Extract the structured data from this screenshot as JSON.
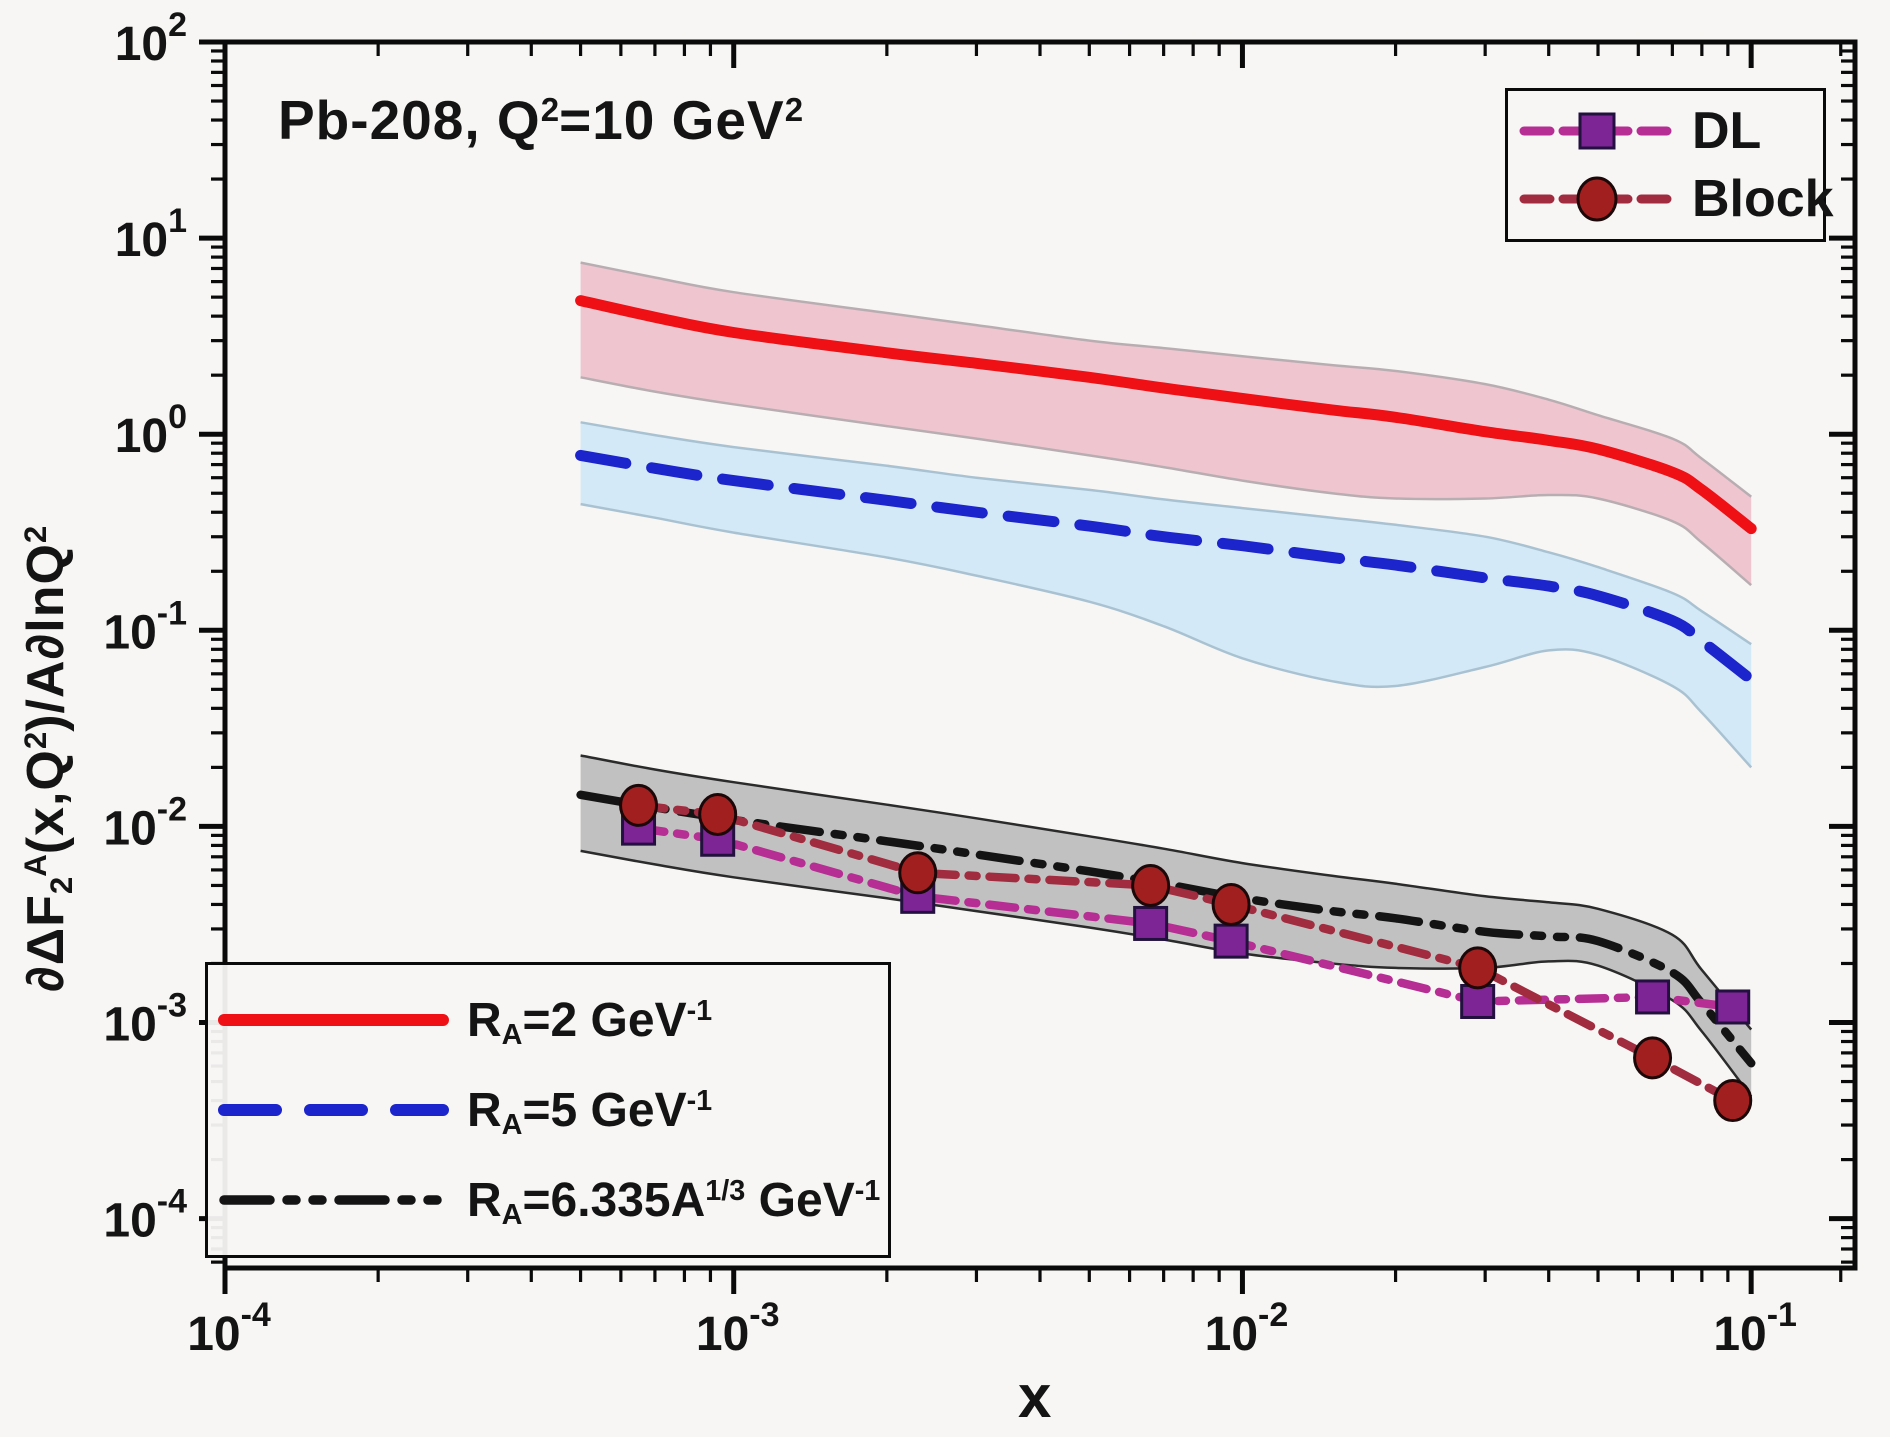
{
  "title_segments": [
    {
      "t": "Pb-208, Q"
    },
    {
      "t": "2",
      "style": "sup"
    },
    {
      "t": "=10 GeV"
    },
    {
      "t": "2",
      "style": "sup"
    }
  ],
  "axes": {
    "x": {
      "label": "x",
      "ticks": [
        {
          "base": "10",
          "exp": "-4"
        },
        {
          "base": "10",
          "exp": "-3"
        },
        {
          "base": "10",
          "exp": "-2"
        },
        {
          "base": "10",
          "exp": "-1"
        }
      ],
      "tick_exponents": [
        -4,
        -3,
        -2,
        -1
      ]
    },
    "y": {
      "label_segments": [
        {
          "t": "∂ΔF"
        },
        {
          "t": "2",
          "style": "sub"
        },
        {
          "t": "A",
          "style": "sup"
        },
        {
          "t": "(x,Q"
        },
        {
          "t": "2",
          "style": "sup"
        },
        {
          "t": ")/A∂lnQ"
        },
        {
          "t": "2",
          "style": "sup"
        }
      ],
      "ticks": [
        {
          "base": "10",
          "exp": "2"
        },
        {
          "base": "10",
          "exp": "1"
        },
        {
          "base": "10",
          "exp": "0"
        },
        {
          "base": "10",
          "exp": "-1"
        },
        {
          "base": "10",
          "exp": "-2"
        },
        {
          "base": "10",
          "exp": "-3"
        },
        {
          "base": "10",
          "exp": "-4"
        }
      ],
      "tick_exponents": [
        2,
        1,
        0,
        -1,
        -2,
        -3,
        -4
      ]
    }
  },
  "colors": {
    "frame": "#0a0a0a",
    "background": "#f7f6f4",
    "red_line": "#ee1015",
    "red_band": "#efc6d0",
    "red_band_edge": "#b8aeb2",
    "blue_line": "#1c24cc",
    "blue_band": "#d4e9f7",
    "blue_band_edge": "#a9c2d2",
    "black_line": "#141414",
    "gray_band": "#c2c1c1",
    "gray_band_edge": "#2b2b2b",
    "dl_line": "#b62e93",
    "dl_marker": "#7e2596",
    "dl_marker_edge": "#22103f",
    "block_line": "#a12c3f",
    "block_marker": "#a21f1f",
    "block_marker_edge": "#1c0808"
  },
  "legends": {
    "data_curves": {
      "items": [
        {
          "label": "DL",
          "marker": "square",
          "series": 3
        },
        {
          "label": "Block",
          "marker": "circle",
          "series": 4
        }
      ]
    },
    "models": {
      "items": [
        {
          "segments": [
            {
              "t": "R"
            },
            {
              "t": "A",
              "style": "sub"
            },
            {
              "t": "=2 GeV"
            },
            {
              "t": "-1",
              "style": "sup"
            }
          ],
          "line": "solid",
          "series": 0
        },
        {
          "segments": [
            {
              "t": "R"
            },
            {
              "t": "A",
              "style": "sub"
            },
            {
              "t": "=5 GeV"
            },
            {
              "t": "-1",
              "style": "sup"
            }
          ],
          "line": "dash",
          "series": 1
        },
        {
          "segments": [
            {
              "t": "R"
            },
            {
              "t": "A",
              "style": "sub"
            },
            {
              "t": "=6.335A"
            },
            {
              "t": "1/3",
              "style": "sup"
            },
            {
              "t": " GeV"
            },
            {
              "t": "-1",
              "style": "sup"
            }
          ],
          "line": "dashdotdot",
          "series": 2
        }
      ]
    }
  },
  "chart_data": {
    "type": "line",
    "xscale": "log",
    "yscale": "log",
    "title": "Pb-208, Q^2=10 GeV^2",
    "xlabel": "x",
    "ylabel": "dDF2A(x,Q2)/A dlnQ2",
    "xlim": [
      0.0001,
      0.16
    ],
    "ylim": [
      5.6e-05,
      100
    ],
    "grid": false,
    "series": [
      {
        "name": "RA=2 GeV-1",
        "kind": "band_line",
        "style": "solid",
        "color_key": "red_line",
        "band_key": "red_band",
        "band_edge_key": "red_band_edge",
        "x": [
          0.0005,
          0.0007,
          0.001,
          0.002,
          0.003,
          0.005,
          0.007,
          0.01,
          0.015,
          0.02,
          0.03,
          0.04,
          0.05,
          0.07,
          0.08,
          0.1
        ],
        "y": [
          4.8,
          3.95,
          3.3,
          2.6,
          2.3,
          1.95,
          1.72,
          1.52,
          1.33,
          1.22,
          1.03,
          0.93,
          0.84,
          0.64,
          0.52,
          0.33
        ],
        "band_upper": [
          7.5,
          6.3,
          5.3,
          4.15,
          3.6,
          3.0,
          2.75,
          2.5,
          2.25,
          2.1,
          1.8,
          1.5,
          1.25,
          0.95,
          0.75,
          0.48
        ],
        "band_lower": [
          1.95,
          1.65,
          1.42,
          1.1,
          0.95,
          0.78,
          0.68,
          0.58,
          0.5,
          0.47,
          0.47,
          0.49,
          0.47,
          0.36,
          0.28,
          0.17
        ]
      },
      {
        "name": "RA=5 GeV-1",
        "kind": "band_line",
        "style": "dash",
        "color_key": "blue_line",
        "band_key": "blue_band",
        "band_edge_key": "blue_band_edge",
        "x": [
          0.0005,
          0.0007,
          0.001,
          0.002,
          0.003,
          0.005,
          0.007,
          0.01,
          0.015,
          0.02,
          0.03,
          0.04,
          0.05,
          0.07,
          0.08,
          0.1
        ],
        "y": [
          0.78,
          0.67,
          0.58,
          0.46,
          0.4,
          0.34,
          0.3,
          0.27,
          0.235,
          0.215,
          0.185,
          0.168,
          0.15,
          0.112,
          0.088,
          0.056
        ],
        "band_upper": [
          1.15,
          0.99,
          0.86,
          0.69,
          0.6,
          0.52,
          0.465,
          0.42,
          0.375,
          0.345,
          0.3,
          0.25,
          0.21,
          0.155,
          0.125,
          0.085
        ],
        "band_lower": [
          0.44,
          0.375,
          0.315,
          0.235,
          0.19,
          0.14,
          0.105,
          0.072,
          0.055,
          0.052,
          0.065,
          0.079,
          0.075,
          0.052,
          0.038,
          0.02
        ]
      },
      {
        "name": "RA=6.335A1/3 GeV-1",
        "kind": "band_line",
        "style": "dashdotdot",
        "color_key": "black_line",
        "band_key": "gray_band",
        "band_edge_key": "gray_band_edge",
        "x": [
          0.0005,
          0.0007,
          0.001,
          0.002,
          0.003,
          0.005,
          0.007,
          0.01,
          0.015,
          0.02,
          0.03,
          0.04,
          0.05,
          0.07,
          0.08,
          0.1
        ],
        "y": [
          0.0145,
          0.0125,
          0.0108,
          0.0084,
          0.0072,
          0.0059,
          0.0051,
          0.0043,
          0.0037,
          0.0034,
          0.0029,
          0.00275,
          0.0026,
          0.0018,
          0.00125,
          0.00062
        ],
        "band_upper": [
          0.023,
          0.0195,
          0.0168,
          0.0129,
          0.011,
          0.0089,
          0.0077,
          0.0065,
          0.0056,
          0.0051,
          0.0044,
          0.0041,
          0.0038,
          0.0028,
          0.00185,
          0.00092
        ],
        "band_lower": [
          0.0075,
          0.0064,
          0.0055,
          0.0043,
          0.0037,
          0.00305,
          0.00265,
          0.00225,
          0.002,
          0.0019,
          0.0019,
          0.00205,
          0.00195,
          0.0013,
          0.0009,
          0.00042
        ]
      },
      {
        "name": "DL",
        "kind": "marker_line",
        "style": "dashdot",
        "marker": "square",
        "color_key": "dl_line",
        "marker_key": "dl_marker",
        "marker_edge_key": "dl_marker_edge",
        "x": [
          0.00065,
          0.00093,
          0.0023,
          0.0066,
          0.0095,
          0.029,
          0.064,
          0.092
        ],
        "y": [
          0.0098,
          0.0086,
          0.0044,
          0.0032,
          0.0026,
          0.00128,
          0.00135,
          0.0012
        ]
      },
      {
        "name": "Block",
        "kind": "marker_line",
        "style": "dashdot",
        "marker": "circle",
        "color_key": "block_line",
        "marker_key": "block_marker",
        "marker_edge_key": "block_marker_edge",
        "x": [
          0.00065,
          0.00093,
          0.0023,
          0.0066,
          0.0095,
          0.029,
          0.064,
          0.092
        ],
        "y": [
          0.0128,
          0.0115,
          0.0058,
          0.005,
          0.004,
          0.0019,
          0.00066,
          0.0004
        ]
      }
    ]
  }
}
